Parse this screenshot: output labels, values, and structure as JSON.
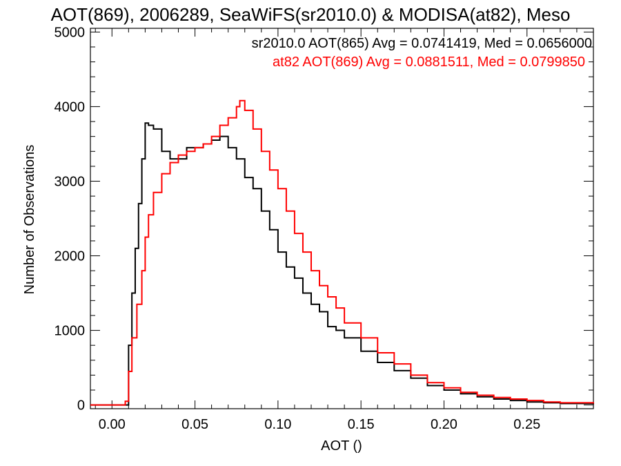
{
  "chart_data": {
    "type": "line",
    "title": "AOT(869), 2006289, SeaWiFS(sr2010.0) & MODISA(at82), Meso",
    "xlabel": "AOT ()",
    "ylabel": "Number of Observations",
    "xlim": [
      -0.013,
      0.29
    ],
    "ylim": [
      -50,
      5050
    ],
    "xticks": [
      0.0,
      0.05,
      0.1,
      0.15,
      0.2,
      0.25
    ],
    "xtick_labels": [
      "0.00",
      "0.05",
      "0.10",
      "0.15",
      "0.20",
      "0.25"
    ],
    "yticks": [
      0,
      1000,
      2000,
      3000,
      4000,
      5000
    ],
    "ytick_labels": [
      "0",
      "1000",
      "2000",
      "3000",
      "4000",
      "5000"
    ],
    "grid": false,
    "legend": "top-right",
    "series": [
      {
        "label": "sr2010.0 AOT(865) Avg = 0.0741419, Med = 0.0656000",
        "color": "#000000",
        "step": true,
        "x": [
          -0.013,
          0.0,
          0.008,
          0.01,
          0.012,
          0.014,
          0.016,
          0.018,
          0.02,
          0.022,
          0.025,
          0.03,
          0.035,
          0.04,
          0.045,
          0.05,
          0.055,
          0.06,
          0.065,
          0.07,
          0.075,
          0.08,
          0.085,
          0.09,
          0.095,
          0.1,
          0.105,
          0.11,
          0.115,
          0.12,
          0.125,
          0.13,
          0.135,
          0.14,
          0.15,
          0.16,
          0.17,
          0.18,
          0.19,
          0.2,
          0.21,
          0.22,
          0.23,
          0.24,
          0.25,
          0.26,
          0.27,
          0.29
        ],
        "y": [
          0,
          0,
          0,
          800,
          1500,
          2100,
          2700,
          3300,
          3780,
          3750,
          3700,
          3400,
          3300,
          3300,
          3450,
          3450,
          3500,
          3550,
          3600,
          3450,
          3300,
          3050,
          2900,
          2600,
          2350,
          2050,
          1850,
          1700,
          1500,
          1350,
          1250,
          1050,
          1000,
          900,
          720,
          570,
          460,
          360,
          260,
          200,
          150,
          110,
          80,
          60,
          40,
          30,
          20,
          10
        ]
      },
      {
        "label": "at82 AOT(869) Avg = 0.0881511, Med = 0.0799850",
        "color": "#ff0000",
        "step": true,
        "x": [
          -0.013,
          0.0,
          0.008,
          0.01,
          0.012,
          0.015,
          0.018,
          0.02,
          0.022,
          0.025,
          0.03,
          0.035,
          0.04,
          0.045,
          0.05,
          0.055,
          0.06,
          0.065,
          0.07,
          0.075,
          0.077,
          0.08,
          0.085,
          0.09,
          0.095,
          0.1,
          0.105,
          0.11,
          0.115,
          0.12,
          0.125,
          0.13,
          0.135,
          0.14,
          0.15,
          0.16,
          0.17,
          0.18,
          0.19,
          0.2,
          0.21,
          0.22,
          0.23,
          0.24,
          0.25,
          0.26,
          0.27,
          0.29
        ],
        "y": [
          0,
          0,
          50,
          450,
          900,
          1350,
          1800,
          2250,
          2550,
          2850,
          3100,
          3250,
          3350,
          3400,
          3450,
          3500,
          3600,
          3750,
          3850,
          4000,
          4080,
          3950,
          3700,
          3400,
          3150,
          2900,
          2600,
          2300,
          2050,
          1800,
          1600,
          1450,
          1300,
          1100,
          900,
          700,
          550,
          400,
          300,
          230,
          170,
          130,
          100,
          80,
          60,
          40,
          30,
          20
        ]
      }
    ]
  }
}
